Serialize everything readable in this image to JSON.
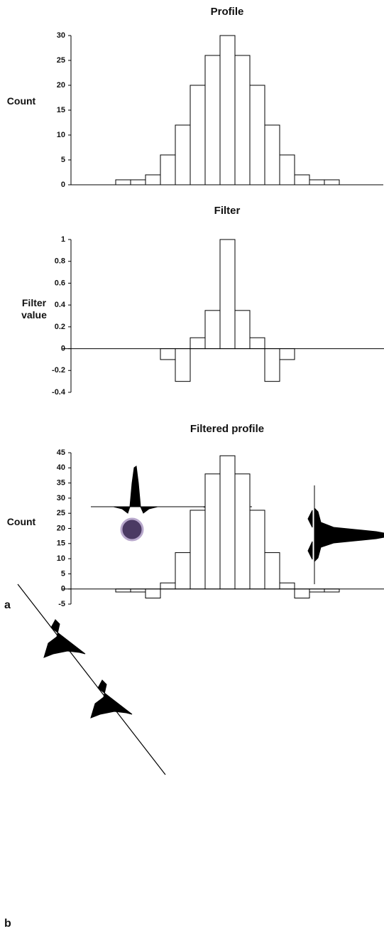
{
  "chart_data": [
    {
      "type": "bar",
      "title": "Profile",
      "y_label": "Count",
      "categories": [
        null,
        null,
        null,
        null,
        null,
        null,
        null,
        null,
        null,
        null,
        null,
        null,
        null,
        null,
        null,
        null,
        null,
        null,
        null,
        null,
        null
      ],
      "values": [
        null,
        null,
        null,
        1,
        1,
        2,
        6,
        12,
        20,
        26,
        30,
        26,
        20,
        12,
        6,
        2,
        1,
        1,
        null,
        null,
        null
      ],
      "color": "#ffffff",
      "ylim": [
        0,
        30
      ],
      "yticks": [
        0,
        5,
        10,
        15,
        20,
        25,
        30
      ],
      "grid": false
    },
    {
      "type": "bar",
      "title": "Filter",
      "y_label": "Filter value",
      "categories": [
        null,
        null,
        null,
        null,
        null,
        null,
        null,
        null,
        null,
        null,
        null,
        null,
        null,
        null,
        null,
        null,
        null,
        null,
        null,
        null,
        null
      ],
      "values": [
        null,
        null,
        null,
        null,
        null,
        null,
        -0.1,
        -0.3,
        0.1,
        0.35,
        1,
        0.35,
        0.1,
        -0.3,
        -0.1,
        null,
        null,
        null,
        null,
        null,
        null
      ],
      "color": "#ffffff",
      "ylim": [
        -0.4,
        1
      ],
      "yticks": [
        -0.4,
        -0.2,
        0,
        0.2,
        0.4,
        0.6,
        0.8,
        1
      ],
      "grid": false
    },
    {
      "type": "bar",
      "title": "Filtered profile",
      "y_label": "Count",
      "categories": [
        null,
        null,
        null,
        null,
        null,
        null,
        null,
        null,
        null,
        null,
        null,
        null,
        null,
        null,
        null,
        null,
        null,
        null,
        null,
        null,
        null
      ],
      "values": [
        null,
        null,
        null,
        -1,
        -1,
        -3,
        2,
        12,
        26,
        38,
        44,
        38,
        26,
        12,
        2,
        -3,
        -1,
        -1,
        null,
        null,
        null
      ],
      "color": "#ffffff",
      "ylim": [
        -5,
        45
      ],
      "yticks": [
        -5,
        0,
        5,
        10,
        15,
        20,
        25,
        30,
        35,
        40,
        45
      ],
      "grid": false
    }
  ],
  "panel_labels": [
    "a",
    "b"
  ]
}
